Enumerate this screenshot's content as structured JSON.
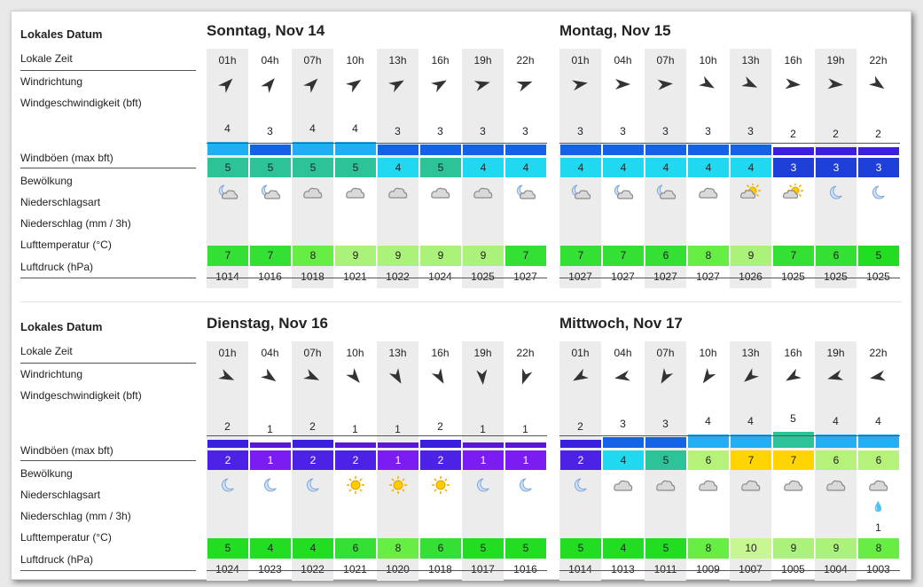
{
  "labels": {
    "date": "Lokales Datum",
    "time": "Lokale Zeit",
    "dir": "Windrichtung",
    "speed": "Windgeschwindigkeit (bft)",
    "gust": "Windböen  (max bft)",
    "cloud": "Bewölkung",
    "ptype": "Niederschlagsart",
    "precip": "Niederschlag (mm / 3h)",
    "temp": "Lufttemperatur (°C)",
    "pressure": "Luftdruck (hPa)"
  },
  "colors": {
    "gust": {
      "1": "#7b1cf2",
      "2": "#4b22e6",
      "3": "#1e40d8",
      "4": "#20d8f0",
      "5": "#2ec299",
      "6": "#b6f27a",
      "7": "#ffd400"
    },
    "speed": {
      "1": "#5a18d6",
      "2": "#3a1fdc",
      "3": "#1463e6",
      "4": "#22aef2",
      "5": "#2ec299"
    },
    "temp": {
      "4": "#22dd22",
      "5": "#22dd22",
      "6": "#33e033",
      "7": "#33e033",
      "8": "#66ee44",
      "9": "#aaf27a",
      "10": "#c8f690"
    }
  },
  "days": [
    {
      "title": "Sonntag, Nov 14",
      "hours": [
        {
          "time": "01h",
          "dir": 45,
          "speed": "4",
          "gust": "5",
          "cloud": "moon-cloud-icon",
          "ptype": "",
          "precip": "",
          "temp": "7",
          "pressure": "1014"
        },
        {
          "time": "04h",
          "dir": 40,
          "speed": "3",
          "gust": "5",
          "cloud": "moon-cloud-icon",
          "ptype": "",
          "precip": "",
          "temp": "7",
          "pressure": "1016"
        },
        {
          "time": "07h",
          "dir": 45,
          "speed": "4",
          "gust": "5",
          "cloud": "cloud-icon",
          "ptype": "",
          "precip": "",
          "temp": "8",
          "pressure": "1018"
        },
        {
          "time": "10h",
          "dir": 55,
          "speed": "4",
          "gust": "5",
          "cloud": "cloud-icon",
          "ptype": "",
          "precip": "",
          "temp": "9",
          "pressure": "1021"
        },
        {
          "time": "13h",
          "dir": 60,
          "speed": "3",
          "gust": "4",
          "cloud": "cloud-icon",
          "ptype": "",
          "precip": "",
          "temp": "9",
          "pressure": "1022"
        },
        {
          "time": "16h",
          "dir": 60,
          "speed": "3",
          "gust": "5",
          "cloud": "cloud-icon",
          "ptype": "",
          "precip": "",
          "temp": "9",
          "pressure": "1024"
        },
        {
          "time": "19h",
          "dir": 75,
          "speed": "3",
          "gust": "4",
          "cloud": "cloud-icon",
          "ptype": "",
          "precip": "",
          "temp": "9",
          "pressure": "1025"
        },
        {
          "time": "22h",
          "dir": 70,
          "speed": "3",
          "gust": "4",
          "cloud": "moon-cloud-icon",
          "ptype": "",
          "precip": "",
          "temp": "7",
          "pressure": "1027"
        }
      ]
    },
    {
      "title": "Montag, Nov 15",
      "hours": [
        {
          "time": "01h",
          "dir": 80,
          "speed": "3",
          "gust": "4",
          "cloud": "moon-cloud-icon",
          "ptype": "",
          "precip": "",
          "temp": "7",
          "pressure": "1027"
        },
        {
          "time": "04h",
          "dir": 90,
          "speed": "3",
          "gust": "4",
          "cloud": "moon-cloud-icon",
          "ptype": "",
          "precip": "",
          "temp": "7",
          "pressure": "1027"
        },
        {
          "time": "07h",
          "dir": 85,
          "speed": "3",
          "gust": "4",
          "cloud": "moon-cloud-icon",
          "ptype": "",
          "precip": "",
          "temp": "6",
          "pressure": "1027"
        },
        {
          "time": "10h",
          "dir": 120,
          "speed": "3",
          "gust": "4",
          "cloud": "cloud-icon",
          "ptype": "",
          "precip": "",
          "temp": "8",
          "pressure": "1027"
        },
        {
          "time": "13h",
          "dir": 115,
          "speed": "3",
          "gust": "4",
          "cloud": "sun-cloud-icon",
          "ptype": "",
          "precip": "",
          "temp": "9",
          "pressure": "1026"
        },
        {
          "time": "16h",
          "dir": 95,
          "speed": "2",
          "gust": "3",
          "cloud": "sun-cloud-icon",
          "ptype": "",
          "precip": "",
          "temp": "7",
          "pressure": "1025"
        },
        {
          "time": "19h",
          "dir": 95,
          "speed": "2",
          "gust": "3",
          "cloud": "moon-icon",
          "ptype": "",
          "precip": "",
          "temp": "6",
          "pressure": "1025"
        },
        {
          "time": "22h",
          "dir": 125,
          "speed": "2",
          "gust": "3",
          "cloud": "moon-icon",
          "ptype": "",
          "precip": "",
          "temp": "5",
          "pressure": "1025"
        }
      ]
    },
    {
      "title": "Dienstag, Nov 16",
      "hours": [
        {
          "time": "01h",
          "dir": 115,
          "speed": "2",
          "gust": "2",
          "cloud": "moon-icon",
          "ptype": "",
          "precip": "",
          "temp": "5",
          "pressure": "1024"
        },
        {
          "time": "04h",
          "dir": 125,
          "speed": "1",
          "gust": "1",
          "cloud": "moon-icon",
          "ptype": "",
          "precip": "",
          "temp": "4",
          "pressure": "1023"
        },
        {
          "time": "07h",
          "dir": 115,
          "speed": "2",
          "gust": "2",
          "cloud": "moon-icon",
          "ptype": "",
          "precip": "",
          "temp": "4",
          "pressure": "1022"
        },
        {
          "time": "10h",
          "dir": 140,
          "speed": "1",
          "gust": "2",
          "cloud": "sun-icon",
          "ptype": "",
          "precip": "",
          "temp": "6",
          "pressure": "1021"
        },
        {
          "time": "13h",
          "dir": 150,
          "speed": "1",
          "gust": "1",
          "cloud": "sun-icon",
          "ptype": "",
          "precip": "",
          "temp": "8",
          "pressure": "1020"
        },
        {
          "time": "16h",
          "dir": 150,
          "speed": "2",
          "gust": "2",
          "cloud": "sun-icon",
          "ptype": "",
          "precip": "",
          "temp": "6",
          "pressure": "1018"
        },
        {
          "time": "19h",
          "dir": 175,
          "speed": "1",
          "gust": "1",
          "cloud": "moon-icon",
          "ptype": "",
          "precip": "",
          "temp": "5",
          "pressure": "1017"
        },
        {
          "time": "22h",
          "dir": 200,
          "speed": "1",
          "gust": "1",
          "cloud": "moon-icon",
          "ptype": "",
          "precip": "",
          "temp": "5",
          "pressure": "1016"
        }
      ]
    },
    {
      "title": "Mittwoch, Nov 17",
      "hours": [
        {
          "time": "01h",
          "dir": 240,
          "speed": "2",
          "gust": "2",
          "cloud": "moon-icon",
          "ptype": "",
          "precip": "",
          "temp": "5",
          "pressure": "1014"
        },
        {
          "time": "04h",
          "dir": 260,
          "speed": "3",
          "gust": "4",
          "cloud": "cloud-icon",
          "ptype": "",
          "precip": "",
          "temp": "4",
          "pressure": "1013"
        },
        {
          "time": "07h",
          "dir": 210,
          "speed": "3",
          "gust": "5",
          "cloud": "cloud-icon",
          "ptype": "",
          "precip": "",
          "temp": "5",
          "pressure": "1011"
        },
        {
          "time": "10h",
          "dir": 215,
          "speed": "4",
          "gust": "6",
          "cloud": "cloud-icon",
          "ptype": "",
          "precip": "",
          "temp": "8",
          "pressure": "1009"
        },
        {
          "time": "13h",
          "dir": 230,
          "speed": "4",
          "gust": "7",
          "cloud": "cloud-icon",
          "ptype": "",
          "precip": "",
          "temp": "10",
          "pressure": "1007"
        },
        {
          "time": "16h",
          "dir": 240,
          "speed": "5",
          "gust": "7",
          "cloud": "cloud-icon",
          "ptype": "",
          "precip": "",
          "temp": "9",
          "pressure": "1005"
        },
        {
          "time": "19h",
          "dir": 255,
          "speed": "4",
          "gust": "6",
          "cloud": "cloud-icon",
          "ptype": "",
          "precip": "",
          "temp": "9",
          "pressure": "1004"
        },
        {
          "time": "22h",
          "dir": 260,
          "speed": "4",
          "gust": "6",
          "cloud": "cloud-icon",
          "ptype": "rain-drop-icon",
          "precip": "1",
          "temp": "8",
          "pressure": "1003"
        }
      ]
    }
  ]
}
